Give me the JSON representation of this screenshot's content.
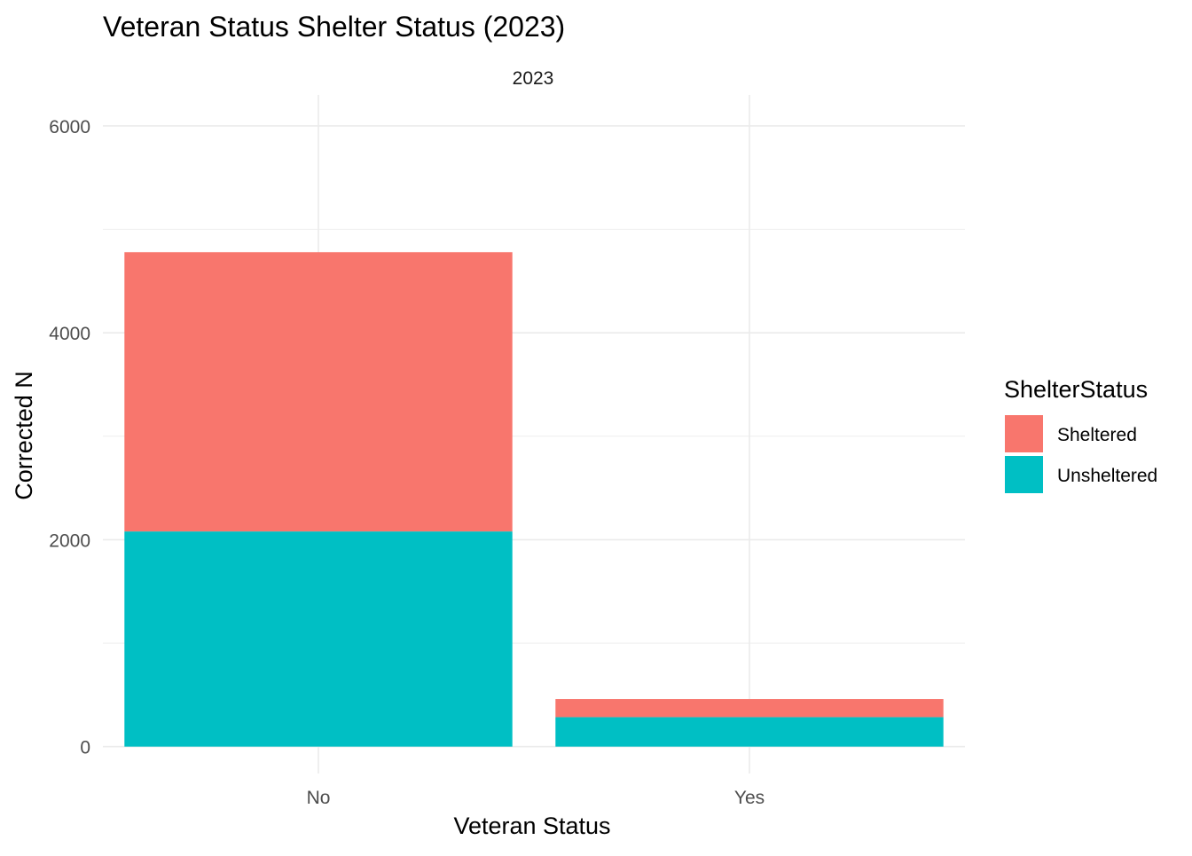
{
  "chart_data": {
    "type": "bar",
    "stacked": true,
    "title": "Veteran Status Shelter Status (2023)",
    "facet_label": "2023",
    "xlabel": "Veteran Status",
    "ylabel": "Corrected N",
    "categories": [
      "No",
      "Yes"
    ],
    "series": [
      {
        "name": "Unsheltered",
        "color": "#00BFC4",
        "values": [
          2080,
          285
        ]
      },
      {
        "name": "Sheltered",
        "color": "#F8766D",
        "values": [
          2700,
          175
        ]
      }
    ],
    "ylim": [
      -260,
      6300
    ],
    "yticks": [
      0,
      2000,
      4000,
      6000
    ],
    "ytick_labels": [
      "0",
      "2000",
      "4000",
      "6000"
    ],
    "grid": true,
    "legend": {
      "title": "ShelterStatus",
      "position": "right",
      "items": [
        {
          "label": "Sheltered",
          "color": "#F8766D"
        },
        {
          "label": "Unsheltered",
          "color": "#00BFC4"
        }
      ]
    }
  }
}
